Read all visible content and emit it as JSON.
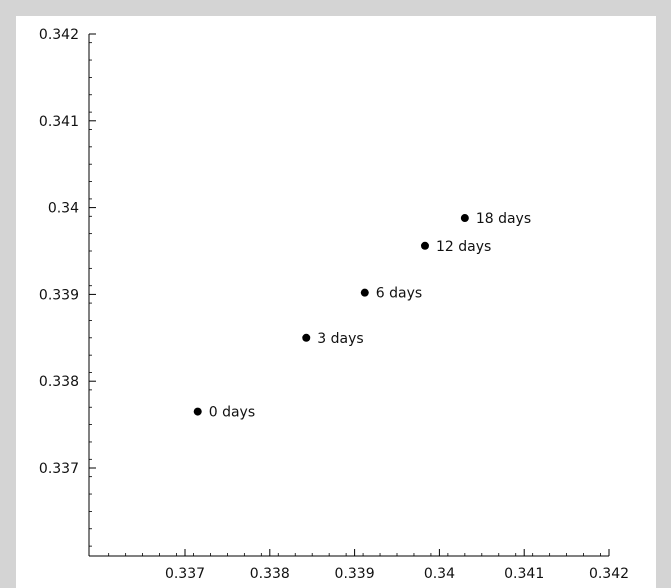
{
  "page": {
    "background": "#d4d4d4",
    "plot_background": "#ffffff"
  },
  "top_caption": "",
  "chart_data": {
    "type": "scatter",
    "title": "",
    "xlabel": "",
    "ylabel": "",
    "xlim": [
      0.3361,
      0.342
    ],
    "ylim": [
      0.3361,
      0.342
    ],
    "x_ticks": [
      {
        "value": 0.337,
        "label": "0.337"
      },
      {
        "value": 0.338,
        "label": "0.338"
      },
      {
        "value": 0.339,
        "label": "0.339"
      },
      {
        "value": 0.34,
        "label": "0.34"
      },
      {
        "value": 0.341,
        "label": "0.341"
      },
      {
        "value": 0.342,
        "label": "0.342"
      }
    ],
    "y_ticks": [
      {
        "value": 0.337,
        "label": "0.337"
      },
      {
        "value": 0.338,
        "label": "0.338"
      },
      {
        "value": 0.339,
        "label": "0.339"
      },
      {
        "value": 0.34,
        "label": "0.34"
      },
      {
        "value": 0.341,
        "label": "0.341"
      },
      {
        "value": 0.342,
        "label": "0.342"
      }
    ],
    "minor_ticks_per_major": 5,
    "grid": false,
    "marker_color": "#000000",
    "points": [
      {
        "x": 0.33715,
        "y": 0.33765,
        "label": "0 days"
      },
      {
        "x": 0.33843,
        "y": 0.3385,
        "label": "3 days"
      },
      {
        "x": 0.33912,
        "y": 0.33902,
        "label": "6 days"
      },
      {
        "x": 0.33983,
        "y": 0.33956,
        "label": "12 days"
      },
      {
        "x": 0.3403,
        "y": 0.33988,
        "label": "18 days"
      }
    ]
  }
}
